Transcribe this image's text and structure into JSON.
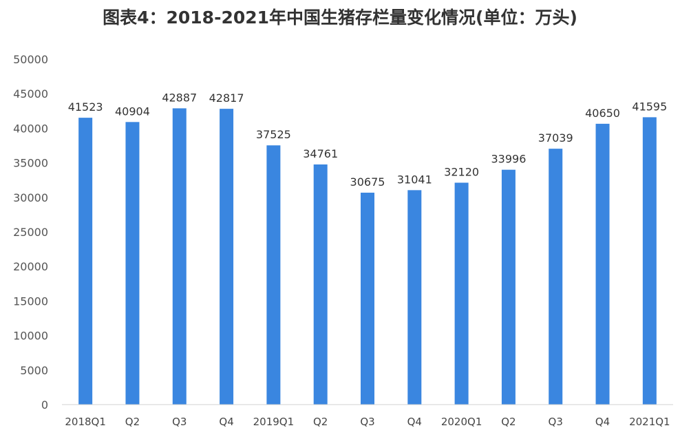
{
  "chart_data": {
    "type": "bar",
    "title": "图表4：2018-2021年中国生猪存栏量变化情况(单位：万头)",
    "categories": [
      "2018Q1",
      "Q2",
      "Q3",
      "Q4",
      "2019Q1",
      "Q2",
      "Q3",
      "Q4",
      "2020Q1",
      "Q2",
      "Q3",
      "Q4",
      "2021Q1"
    ],
    "values": [
      41523,
      40904,
      42887,
      42817,
      37525,
      34761,
      30675,
      31041,
      32120,
      33996,
      37039,
      40650,
      41595
    ],
    "yticks": [
      0,
      5000,
      10000,
      15000,
      20000,
      25000,
      30000,
      35000,
      40000,
      45000,
      50000
    ],
    "ylim": [
      0,
      50000
    ],
    "grid": false,
    "bar_color": "#3a86e0",
    "xlabel": "",
    "ylabel": ""
  }
}
